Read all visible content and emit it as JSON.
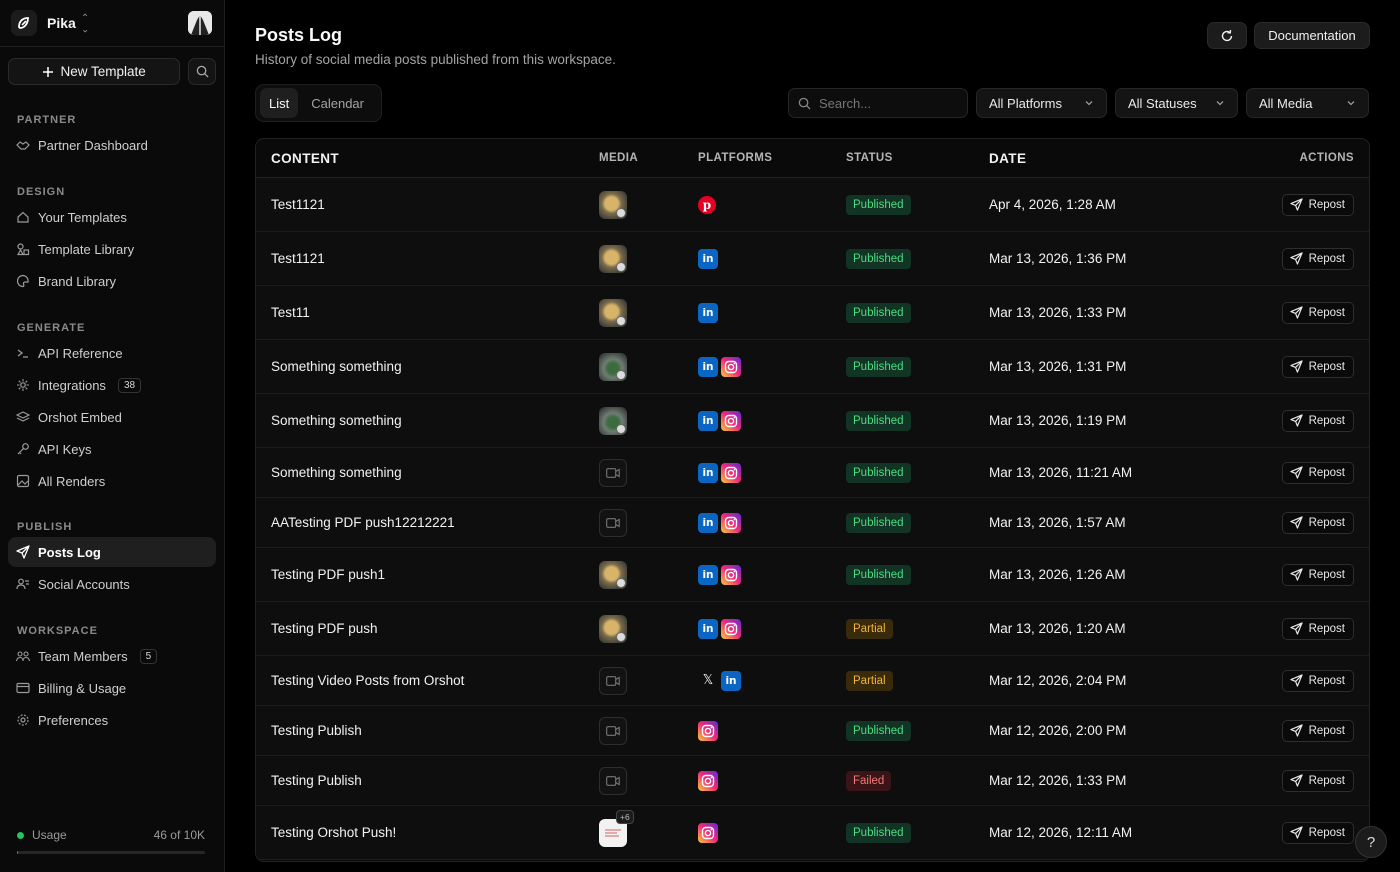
{
  "workspace": {
    "name": "Pika"
  },
  "sidebar": {
    "new_template_label": "New Template",
    "sections": [
      {
        "title": "PARTNER",
        "items": [
          {
            "label": "Partner Dashboard",
            "icon": "handshake-icon"
          }
        ]
      },
      {
        "title": "DESIGN",
        "items": [
          {
            "label": "Your Templates",
            "icon": "home-icon"
          },
          {
            "label": "Template Library",
            "icon": "shapes-icon"
          },
          {
            "label": "Brand Library",
            "icon": "palette-icon"
          }
        ]
      },
      {
        "title": "GENERATE",
        "items": [
          {
            "label": "API Reference",
            "icon": "terminal-icon"
          },
          {
            "label": "Integrations",
            "icon": "plug-icon",
            "badge": "38"
          },
          {
            "label": "Orshot Embed",
            "icon": "layers-icon"
          },
          {
            "label": "API Keys",
            "icon": "key-icon"
          },
          {
            "label": "All Renders",
            "icon": "image-icon"
          }
        ]
      },
      {
        "title": "PUBLISH",
        "items": [
          {
            "label": "Posts Log",
            "icon": "send-icon",
            "active": true
          },
          {
            "label": "Social Accounts",
            "icon": "users-icon"
          }
        ]
      },
      {
        "title": "WORKSPACE",
        "items": [
          {
            "label": "Team Members",
            "icon": "team-icon",
            "badge": "5"
          },
          {
            "label": "Billing & Usage",
            "icon": "credit-card-icon"
          },
          {
            "label": "Preferences",
            "icon": "gear-icon"
          }
        ]
      }
    ],
    "usage": {
      "label": "Usage",
      "value": "46 of 10K",
      "fraction": 0.0046
    }
  },
  "header": {
    "title": "Posts Log",
    "subtitle": "History of social media posts published from this workspace.",
    "documentation_label": "Documentation"
  },
  "toolbar": {
    "tabs": [
      {
        "label": "List",
        "active": true
      },
      {
        "label": "Calendar",
        "active": false
      }
    ],
    "search_placeholder": "Search...",
    "filters": [
      {
        "label": "All Platforms"
      },
      {
        "label": "All Statuses"
      },
      {
        "label": "All Media"
      }
    ]
  },
  "table": {
    "columns": [
      "CONTENT",
      "MEDIA",
      "PLATFORMS",
      "STATUS",
      "DATE",
      "ACTIONS"
    ],
    "action_label": "Repost",
    "rows": [
      {
        "content": "Test1121",
        "media": "gold",
        "platforms": [
          "pinterest"
        ],
        "status": "Published",
        "date": "Apr 4, 2026, 1:28 AM"
      },
      {
        "content": "Test1121",
        "media": "gold",
        "platforms": [
          "linkedin"
        ],
        "status": "Published",
        "date": "Mar 13, 2026, 1:36 PM"
      },
      {
        "content": "Test11",
        "media": "gold",
        "platforms": [
          "linkedin"
        ],
        "status": "Published",
        "date": "Mar 13, 2026, 1:33 PM"
      },
      {
        "content": "Something something",
        "media": "green",
        "platforms": [
          "linkedin",
          "instagram"
        ],
        "status": "Published",
        "date": "Mar 13, 2026, 1:31 PM"
      },
      {
        "content": "Something something",
        "media": "green",
        "platforms": [
          "linkedin",
          "instagram"
        ],
        "status": "Published",
        "date": "Mar 13, 2026, 1:19 PM"
      },
      {
        "content": "Something something",
        "media": "video",
        "platforms": [
          "linkedin",
          "instagram"
        ],
        "status": "Published",
        "date": "Mar 13, 2026, 11:21 AM"
      },
      {
        "content": "AATesting PDF push12212221",
        "media": "video",
        "platforms": [
          "linkedin",
          "instagram"
        ],
        "status": "Published",
        "date": "Mar 13, 2026, 1:57 AM"
      },
      {
        "content": "Testing PDF push1",
        "media": "gold",
        "platforms": [
          "linkedin",
          "instagram"
        ],
        "status": "Published",
        "date": "Mar 13, 2026, 1:26 AM"
      },
      {
        "content": "Testing PDF push",
        "media": "gold",
        "platforms": [
          "linkedin",
          "instagram"
        ],
        "status": "Partial",
        "date": "Mar 13, 2026, 1:20 AM"
      },
      {
        "content": "Testing Video Posts from Orshot",
        "media": "video",
        "platforms": [
          "x",
          "linkedin"
        ],
        "status": "Partial",
        "date": "Mar 12, 2026, 2:04 PM"
      },
      {
        "content": "Testing Publish",
        "media": "video",
        "platforms": [
          "instagram"
        ],
        "status": "Published",
        "date": "Mar 12, 2026, 2:00 PM"
      },
      {
        "content": "Testing Publish",
        "media": "video",
        "platforms": [
          "instagram"
        ],
        "status": "Failed",
        "date": "Mar 12, 2026, 1:33 PM"
      },
      {
        "content": "Testing Orshot Push!",
        "media": "white",
        "media_extra": "+6",
        "platforms": [
          "instagram"
        ],
        "status": "Published",
        "date": "Mar 12, 2026, 12:11 AM"
      }
    ]
  },
  "help_label": "?",
  "colors": {
    "published": "#4ade80",
    "partial": "#f0b43a",
    "failed": "#f07a7a",
    "linkedin": "#0a66c2",
    "pinterest": "#e60023",
    "usage": "#22c55e"
  }
}
